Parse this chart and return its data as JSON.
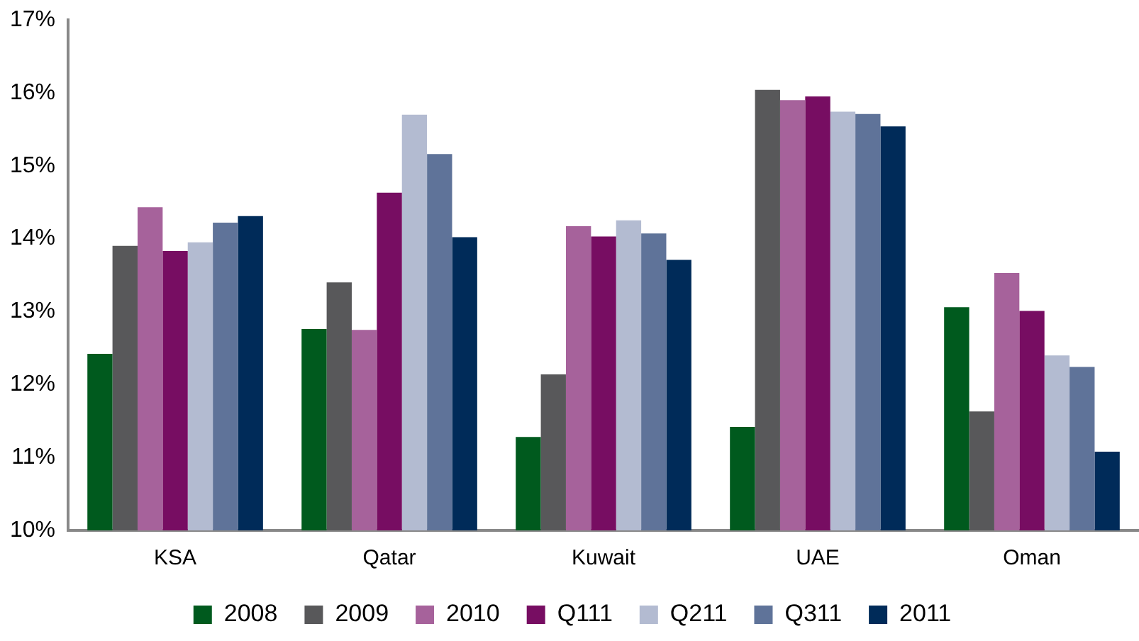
{
  "chart_data": {
    "type": "bar",
    "categories": [
      "KSA",
      "Qatar",
      "Kuwait",
      "UAE",
      "Oman"
    ],
    "series": [
      {
        "name": "2008",
        "color": "#005a1e",
        "values": [
          12.42,
          12.76,
          11.28,
          11.42,
          13.06
        ]
      },
      {
        "name": "2009",
        "color": "#58585a",
        "values": [
          13.9,
          13.4,
          12.14,
          16.04,
          11.63
        ]
      },
      {
        "name": "2010",
        "color": "#a6629b",
        "values": [
          14.43,
          12.75,
          14.17,
          15.9,
          13.53
        ]
      },
      {
        "name": "Q111",
        "color": "#770d62",
        "values": [
          13.83,
          14.63,
          14.03,
          15.95,
          13.01
        ]
      },
      {
        "name": "Q211",
        "color": "#b3bbd1",
        "values": [
          13.95,
          15.7,
          14.25,
          15.74,
          12.4
        ]
      },
      {
        "name": "Q311",
        "color": "#5f7399",
        "values": [
          14.22,
          15.16,
          14.07,
          15.71,
          12.24
        ]
      },
      {
        "name": "2011",
        "color": "#002b59",
        "values": [
          14.31,
          14.02,
          13.71,
          15.54,
          11.08
        ]
      }
    ],
    "ylim": [
      10,
      17
    ],
    "yticks": [
      {
        "value": 10,
        "label": "10%"
      },
      {
        "value": 11,
        "label": "11%"
      },
      {
        "value": 12,
        "label": "12%"
      },
      {
        "value": 13,
        "label": "13%"
      },
      {
        "value": 14,
        "label": "14%"
      },
      {
        "value": 15,
        "label": "15%"
      },
      {
        "value": 16,
        "label": "16%"
      },
      {
        "value": 17,
        "label": "17%"
      }
    ],
    "grid": false,
    "legend": "bottom"
  }
}
